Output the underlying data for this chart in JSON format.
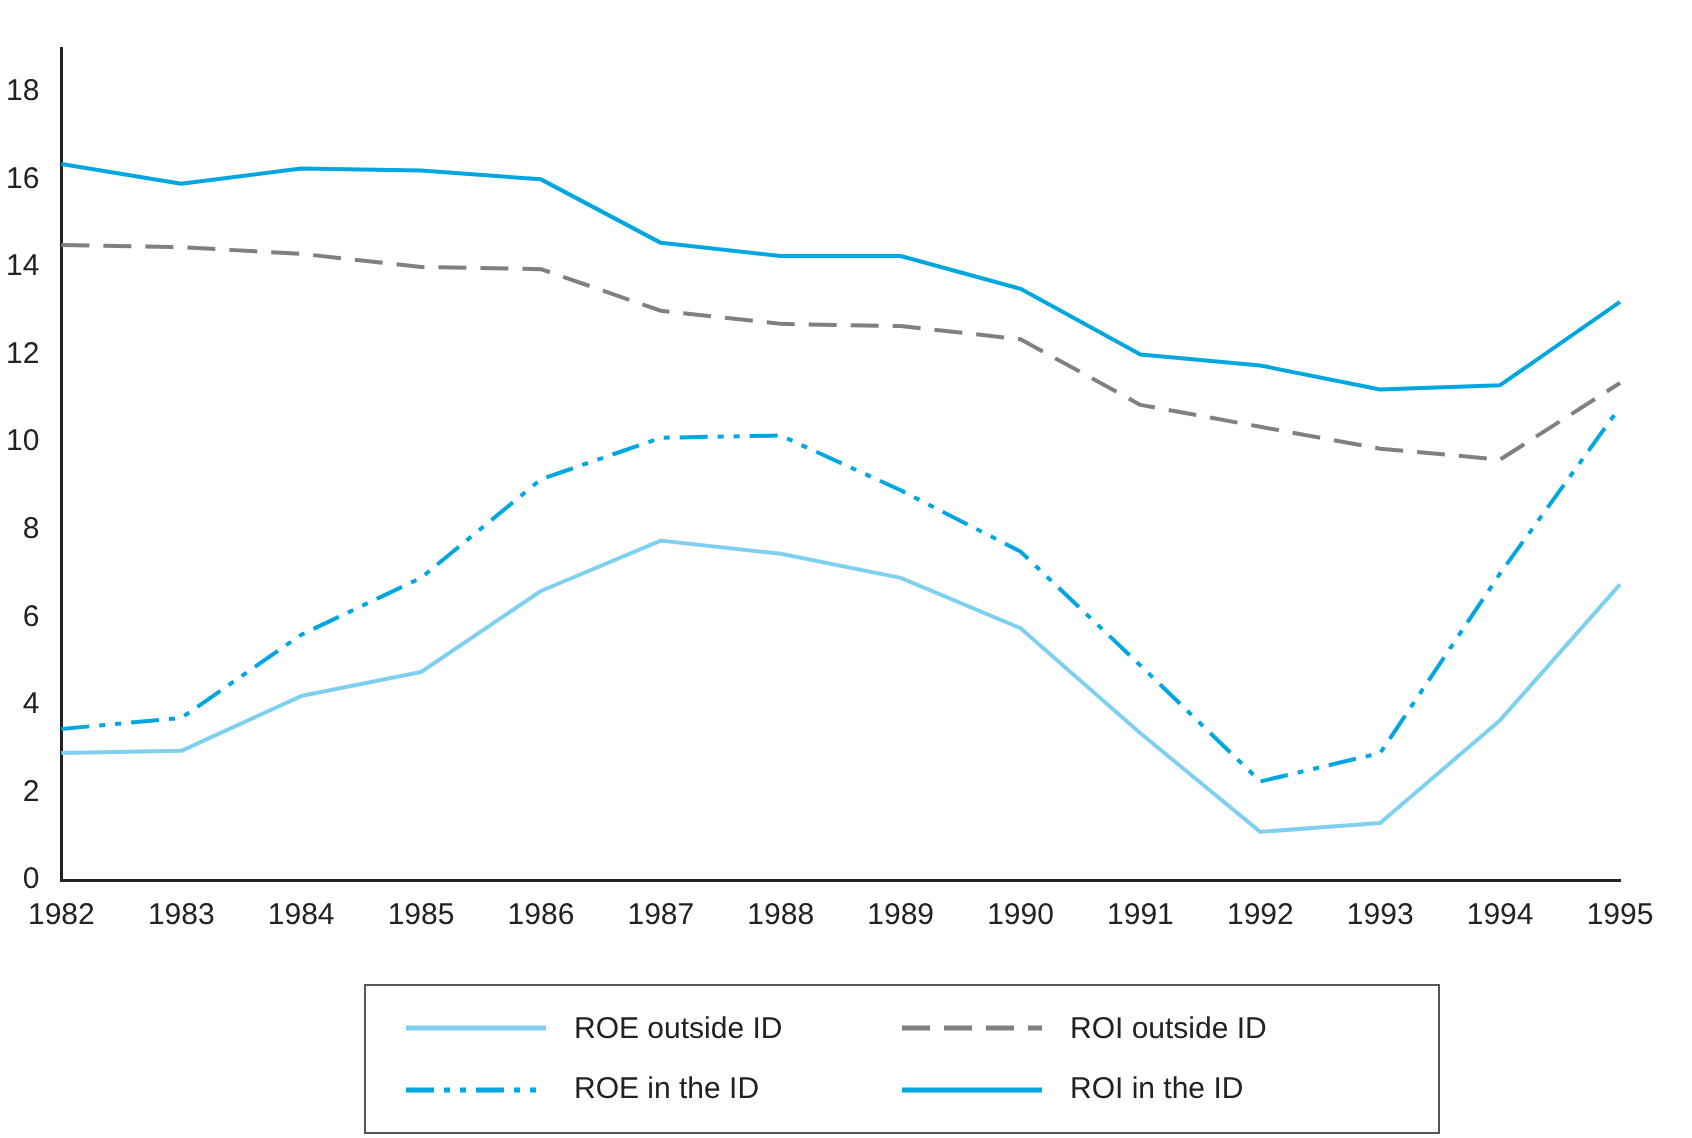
{
  "chart_data": {
    "type": "line",
    "categories": [
      "1982",
      "1983",
      "1984",
      "1985",
      "1986",
      "1987",
      "1988",
      "1989",
      "1990",
      "1991",
      "1992",
      "1993",
      "1994",
      "1995"
    ],
    "series": [
      {
        "name": "ROE outside ID",
        "color": "#7fd0f0",
        "line_style": "solid",
        "values": [
          2.9,
          2.95,
          4.2,
          4.75,
          6.6,
          7.75,
          7.45,
          6.9,
          5.75,
          3.35,
          1.1,
          1.3,
          3.65,
          6.75
        ]
      },
      {
        "name": "ROI outside ID",
        "color": "#808080",
        "line_style": "dashed",
        "values": [
          14.5,
          14.45,
          14.3,
          14.0,
          13.95,
          13.0,
          12.7,
          12.65,
          12.35,
          10.85,
          10.35,
          9.85,
          9.6,
          11.35
        ]
      },
      {
        "name": "ROE in the ID",
        "color": "#00a6e0",
        "line_style": "dotted",
        "values": [
          3.45,
          3.7,
          5.6,
          6.9,
          9.15,
          10.1,
          10.15,
          8.9,
          7.5,
          4.9,
          2.25,
          2.9,
          7.0,
          10.8
        ]
      },
      {
        "name": "ROI in the ID",
        "color": "#00a6e0",
        "line_style": "solid",
        "values": [
          16.35,
          15.9,
          16.25,
          16.2,
          16.0,
          14.55,
          14.25,
          14.25,
          13.5,
          12.0,
          11.75,
          11.2,
          11.3,
          13.2
        ]
      }
    ],
    "ylim": [
      0,
      19
    ],
    "yticks": [
      0,
      2,
      4,
      6,
      8,
      10,
      12,
      14,
      16,
      18
    ],
    "grid": false,
    "legend": "bottom",
    "marker": "none"
  }
}
